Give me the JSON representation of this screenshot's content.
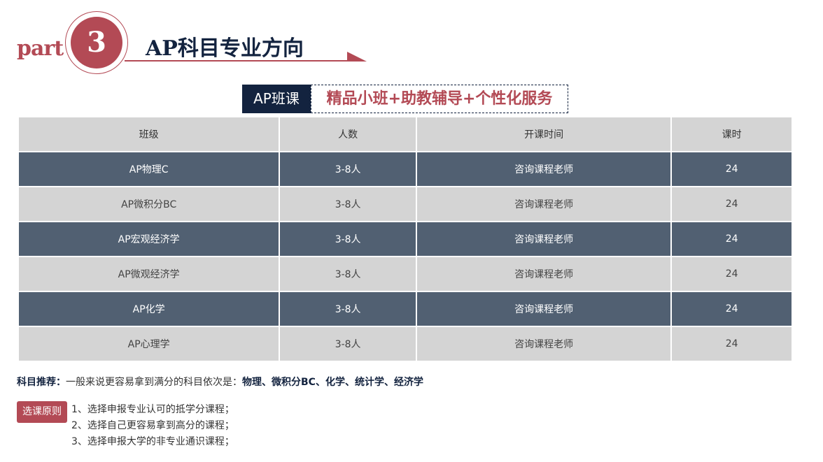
{
  "header": {
    "part_label": "part",
    "number": "3",
    "title": "AP科目专业方向"
  },
  "banner": {
    "tag": "AP班课",
    "slogan": "精品小班+助教辅导+个性化服务"
  },
  "table": {
    "columns": [
      "班级",
      "人数",
      "开课时间",
      "课时"
    ],
    "rows": [
      [
        "AP物理C",
        "3-8人",
        "咨询课程老师",
        "24"
      ],
      [
        "AP微积分BC",
        "3-8人",
        "咨询课程老师",
        "24"
      ],
      [
        "AP宏观经济学",
        "3-8人",
        "咨询课程老师",
        "24"
      ],
      [
        "AP微观经济学",
        "3-8人",
        "咨询课程老师",
        "24"
      ],
      [
        "AP化学",
        "3-8人",
        "咨询课程老师",
        "24"
      ],
      [
        "AP心理学",
        "3-8人",
        "咨询课程老师",
        "24"
      ]
    ]
  },
  "recommendation": {
    "label": "科目推荐：",
    "text": "一般来说更容易拿到满分的科目依次是：",
    "subjects": "物理、微积分BC、化学、统计学、经济学"
  },
  "principles": {
    "label": "选课原则",
    "items": [
      "1、选择申报专业认可的抵学分课程；",
      "2、选择自己更容易拿到高分的课程；",
      "3、选择申报大学的非专业通识课程；"
    ]
  },
  "colors": {
    "accent": "#b34a55",
    "navy": "#13233f",
    "dark_row": "#516072",
    "light_row": "#d4d4d4"
  }
}
